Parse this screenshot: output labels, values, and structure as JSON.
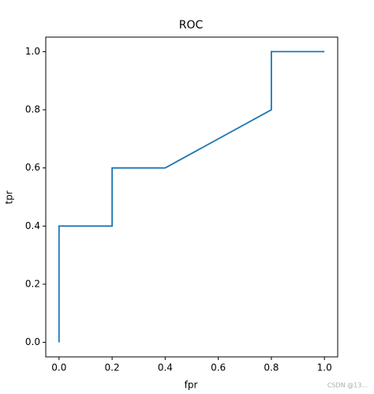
{
  "chart_data": {
    "type": "line",
    "title": "ROC",
    "x_label": "fpr",
    "y_label": "tpr",
    "x": [
      0,
      0,
      0.2,
      0.2,
      0.4,
      0.8,
      0.8,
      1.0
    ],
    "series": [
      {
        "name": "tpr",
        "color": "#1f77b4",
        "values": [
          0,
          0.4,
          0.4,
          0.6,
          0.6,
          0.8,
          1.0,
          1.0
        ]
      }
    ],
    "xlim": [
      -0.05,
      1.05
    ],
    "ylim": [
      -0.05,
      1.05
    ],
    "xticks": [
      {
        "value": 0,
        "label": "0.0"
      },
      0.2,
      0.4,
      0.6,
      0.8,
      {
        "value": 1,
        "label": "1.0"
      }
    ],
    "yticks": [
      {
        "value": 0,
        "label": "0.0"
      },
      0.2,
      0.4,
      0.6,
      0.8,
      {
        "value": 1,
        "label": "1.0"
      }
    ],
    "grid": false
  },
  "watermark": "CSDN @13..."
}
